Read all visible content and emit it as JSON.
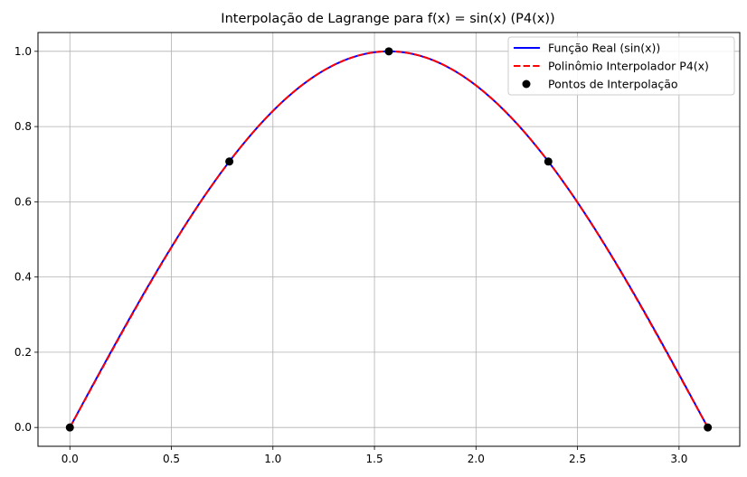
{
  "chart_data": {
    "type": "line",
    "title": "Interpolação de Lagrange para f(x) = sin(x) (P4(x))",
    "xlabel": "",
    "ylabel": "",
    "xlim": [
      -0.157,
      3.299
    ],
    "ylim": [
      -0.05,
      1.05
    ],
    "grid": true,
    "legend_position": "top-right",
    "x_ticks": [
      "0.0",
      "0.5",
      "1.0",
      "1.5",
      "2.0",
      "2.5",
      "3.0"
    ],
    "y_ticks": [
      "0.0",
      "0.2",
      "0.4",
      "0.6",
      "0.8",
      "1.0"
    ],
    "x_tick_values": [
      0,
      0.5,
      1.0,
      1.5,
      2.0,
      2.5,
      3.0
    ],
    "y_tick_values": [
      0,
      0.2,
      0.4,
      0.6,
      0.8,
      1.0
    ],
    "x_range": [
      0,
      3.14159
    ],
    "series": [
      {
        "name": "Função Real (sin(x))",
        "function": "sin(x)",
        "color": "#0000ff",
        "style": "solid"
      },
      {
        "name": "Polinômio Interpolador P4(x)",
        "function": "P4(x)",
        "color": "#ff0000",
        "style": "dashed"
      }
    ],
    "points": {
      "name": "Pontos de Interpolação",
      "color": "#000000",
      "x": [
        0,
        0.7854,
        1.5708,
        2.3562,
        3.14159
      ],
      "y": [
        0,
        0.7071,
        1.0,
        0.7071,
        0
      ]
    }
  }
}
